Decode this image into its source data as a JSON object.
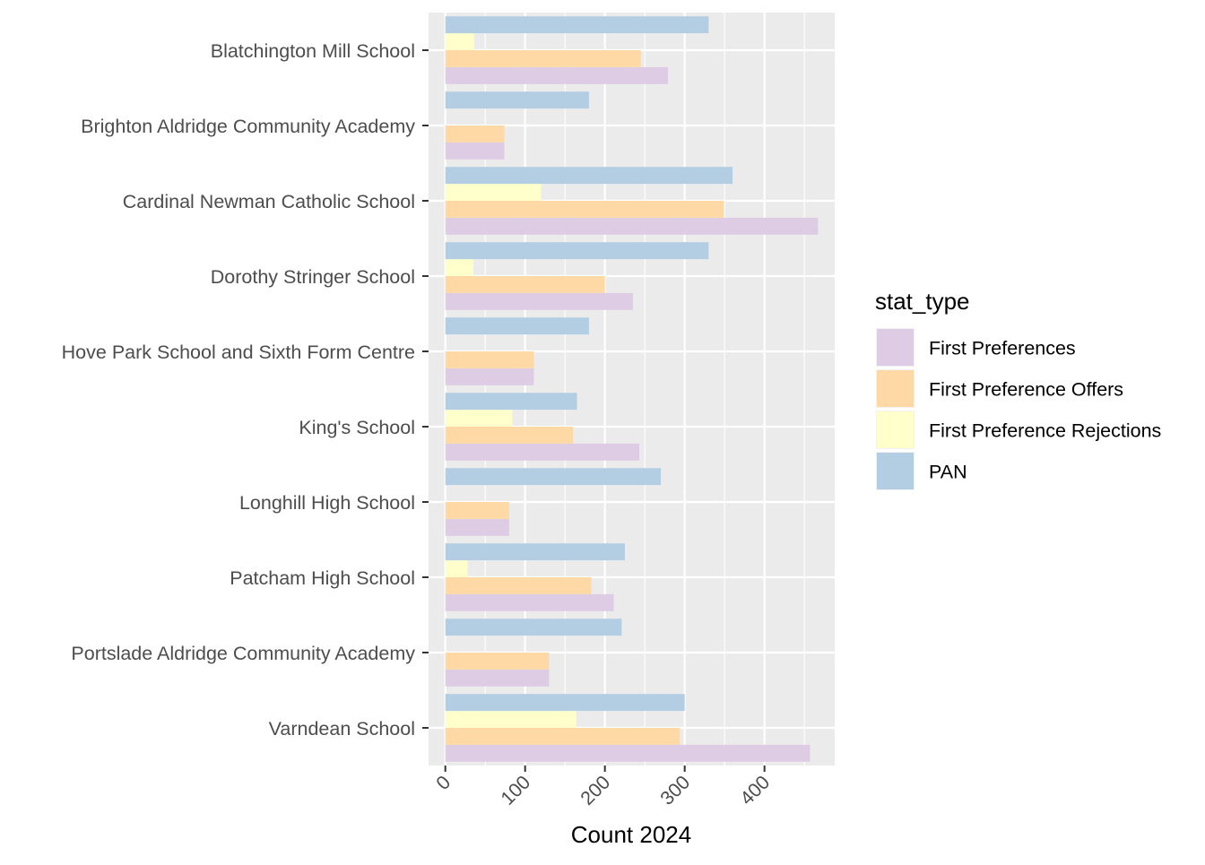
{
  "chart_data": {
    "type": "bar",
    "orientation": "horizontal",
    "categories": [
      "Blatchington Mill School",
      "Brighton Aldridge Community Academy",
      "Cardinal Newman Catholic School",
      "Dorothy Stringer School",
      "Hove Park School and Sixth Form Centre",
      "King's School",
      "Longhill High School",
      "Patcham High School",
      "Portslade Aldridge Community Academy",
      "Varndean School"
    ],
    "series": [
      {
        "name": "First Preferences",
        "color": "#decbe4",
        "values": [
          279,
          74,
          467,
          235,
          111,
          243,
          80,
          211,
          130,
          457
        ]
      },
      {
        "name": "First Preference Offers",
        "color": "#fed9a6",
        "values": [
          245,
          74,
          349,
          200,
          111,
          160,
          80,
          183,
          130,
          294
        ]
      },
      {
        "name": "First Preference Rejections",
        "color": "#ffffcc",
        "values": [
          36,
          0,
          120,
          35,
          0,
          84,
          0,
          28,
          0,
          164
        ]
      },
      {
        "name": "PAN",
        "color": "#b3cde3",
        "values": [
          330,
          180,
          360,
          330,
          180,
          165,
          270,
          225,
          221,
          300
        ]
      }
    ],
    "xlabel": "Count 2024",
    "ylabel": "",
    "xlim": [
      -21,
      488
    ],
    "xticks": [
      0,
      100,
      200,
      300,
      400
    ],
    "xtick_labels": [
      "0",
      "100",
      "200",
      "300",
      "400"
    ],
    "grid": true,
    "legend": {
      "title": "stat_type",
      "placement": "right",
      "entries": [
        "First Preferences",
        "First Preference Offers",
        "First Preference Rejections",
        "PAN"
      ]
    },
    "panel_background": "#ebebeb",
    "grid_color": "#ffffff"
  }
}
